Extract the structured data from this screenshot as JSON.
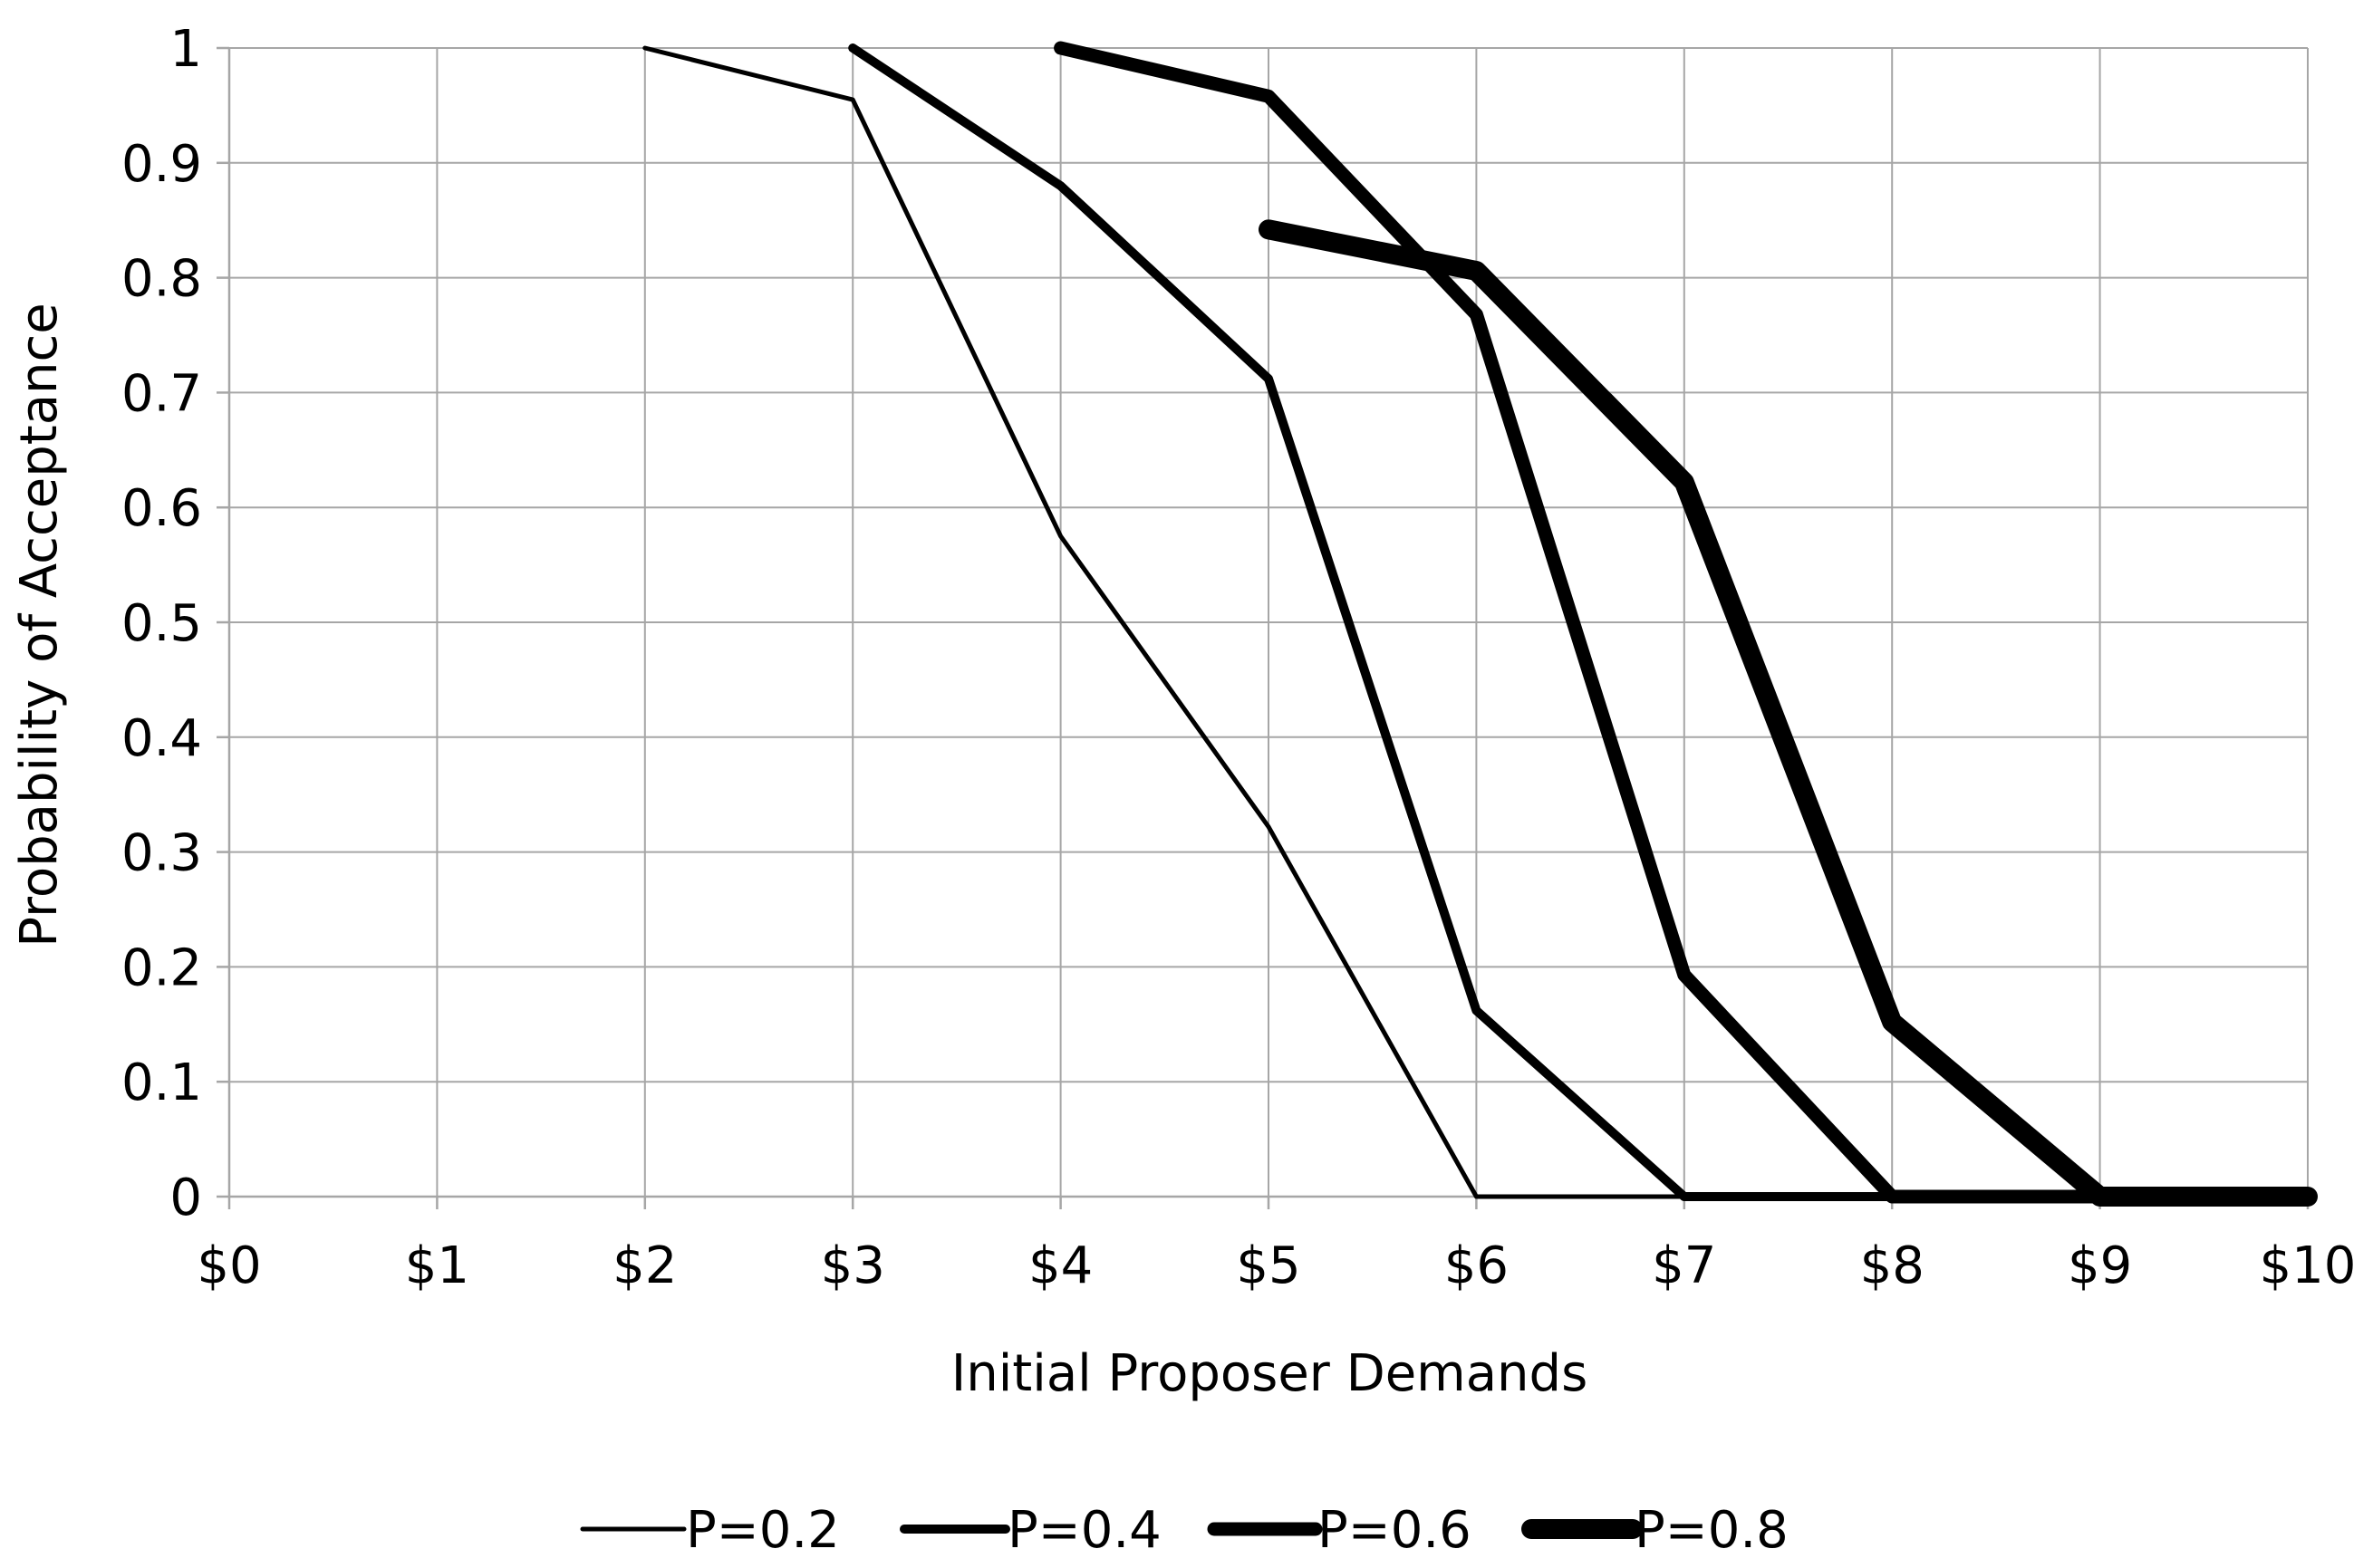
{
  "chart_data": {
    "type": "line",
    "title": "",
    "xlabel": "Initial Proposer Demands",
    "ylabel": "Probability of Acceptance",
    "x": [
      0,
      1,
      2,
      3,
      4,
      5,
      6,
      7,
      8,
      9,
      10
    ],
    "x_tick_labels": [
      "$0",
      "$1",
      "$2",
      "$3",
      "$4",
      "$5",
      "$6",
      "$7",
      "$8",
      "$9",
      "$10"
    ],
    "y_tick_labels": [
      "0",
      "0.1",
      "0.2",
      "0.3",
      "0.4",
      "0.5",
      "0.6",
      "0.7",
      "0.8",
      "0.9",
      "1"
    ],
    "xlim": [
      0,
      10
    ],
    "ylim": [
      0,
      1
    ],
    "grid": true,
    "legend_position": "bottom",
    "line_color": "#000000",
    "grid_color": "#a6a6a6",
    "series": [
      {
        "name": "P=0.2",
        "points": [
          [
            2,
            1.0
          ],
          [
            3,
            0.955
          ],
          [
            4,
            0.575
          ],
          [
            5,
            0.322
          ],
          [
            6,
            0.0
          ],
          [
            7,
            0.0
          ],
          [
            8,
            0.0
          ],
          [
            9,
            0.0
          ],
          [
            10,
            0.0
          ]
        ]
      },
      {
        "name": "P=0.4",
        "points": [
          [
            3,
            1.0
          ],
          [
            4,
            0.88
          ],
          [
            5,
            0.712
          ],
          [
            6,
            0.162
          ],
          [
            7,
            0.0
          ],
          [
            8,
            0.0
          ],
          [
            9,
            0.0
          ],
          [
            10,
            0.0
          ]
        ]
      },
      {
        "name": "P=0.6",
        "points": [
          [
            4,
            1.0
          ],
          [
            5,
            0.958
          ],
          [
            6,
            0.768
          ],
          [
            7,
            0.193
          ],
          [
            8,
            0.0
          ],
          [
            9,
            0.0
          ],
          [
            10,
            0.0
          ]
        ]
      },
      {
        "name": "P=0.8",
        "points": [
          [
            5,
            0.842
          ],
          [
            6,
            0.806
          ],
          [
            7,
            0.622
          ],
          [
            8,
            0.152
          ],
          [
            9,
            0.0
          ],
          [
            10,
            0.0
          ]
        ]
      }
    ]
  }
}
